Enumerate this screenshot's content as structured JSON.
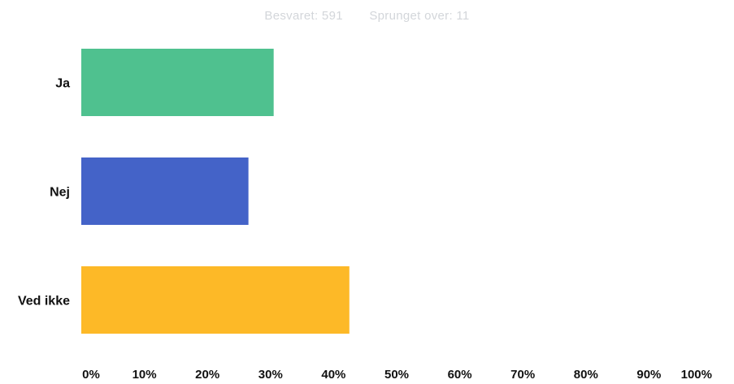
{
  "header": {
    "answered": "Besvaret: 591",
    "skipped": "Sprunget over: 11"
  },
  "colors": {
    "background": "#ffffff",
    "header_text": "#d3d6da",
    "label_text": "#111111"
  },
  "chart_data": {
    "type": "bar",
    "orientation": "horizontal",
    "title": "",
    "xlabel": "",
    "ylabel": "",
    "categories": [
      "Ja",
      "Nej",
      "Ved ikke"
    ],
    "values": [
      30.5,
      26.5,
      42.5
    ],
    "bar_colors": [
      "#4fc18f",
      "#4463c8",
      "#fdb927"
    ],
    "xlim": [
      0,
      100
    ],
    "x_ticks": [
      "0%",
      "10%",
      "20%",
      "30%",
      "40%",
      "50%",
      "60%",
      "70%",
      "80%",
      "90%",
      "100%"
    ],
    "grid": false,
    "legend": "none"
  }
}
